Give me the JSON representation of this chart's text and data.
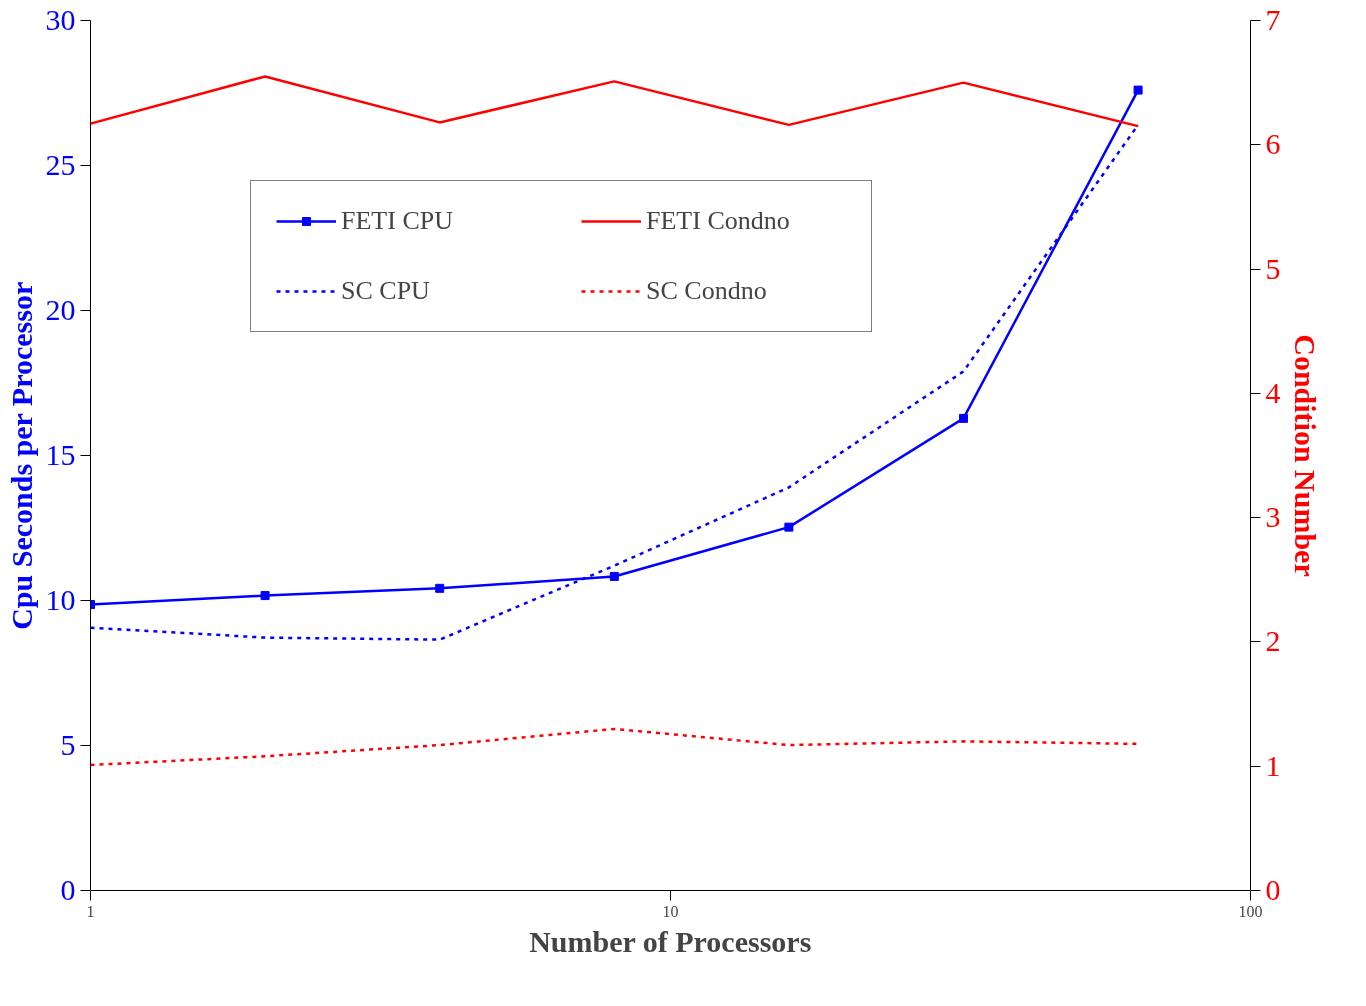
{
  "chart_data": {
    "type": "line",
    "xlabel": "Number of Processors",
    "ylabel": "Cpu Seconds per Processor",
    "y2label": "Condition Number",
    "x": [
      1,
      2,
      4,
      8,
      16,
      32,
      64
    ],
    "log": "x",
    "xlim": [
      1,
      100
    ],
    "xticks": [
      1,
      10,
      100
    ],
    "ylim": [
      0,
      30
    ],
    "yticks": [
      0,
      5,
      10,
      15,
      20,
      25,
      30
    ],
    "y2lim": [
      0,
      7
    ],
    "y2ticks": [
      0,
      1,
      2,
      3,
      4,
      5,
      6,
      7
    ],
    "grid": false,
    "legend": "top left",
    "series": [
      {
        "name": "FETI CPU",
        "color": "#0000ff",
        "marker": "square",
        "line_style": "solid",
        "values": [
          9.86,
          10.17,
          10.42,
          10.83,
          12.53,
          16.28,
          27.6
        ]
      },
      {
        "name": "SC CPU",
        "color": "#0000ff",
        "marker": "none",
        "line_style": "dotted",
        "values": [
          9.06,
          8.72,
          8.65,
          11.2,
          13.9,
          17.9,
          26.4
        ]
      },
      {
        "name": "FETI Condno",
        "color": "#ff0000",
        "marker": "none",
        "line_style": "solid",
        "axis": "y2",
        "values": [
          6.17,
          6.55,
          6.18,
          6.51,
          6.16,
          6.5,
          6.15
        ]
      },
      {
        "name": "SC Condno",
        "color": "#ff0000",
        "marker": "none",
        "line_style": "dotted",
        "axis": "y2",
        "values": [
          1.01,
          1.08,
          1.17,
          1.3,
          1.17,
          1.2,
          1.18
        ]
      }
    ]
  }
}
